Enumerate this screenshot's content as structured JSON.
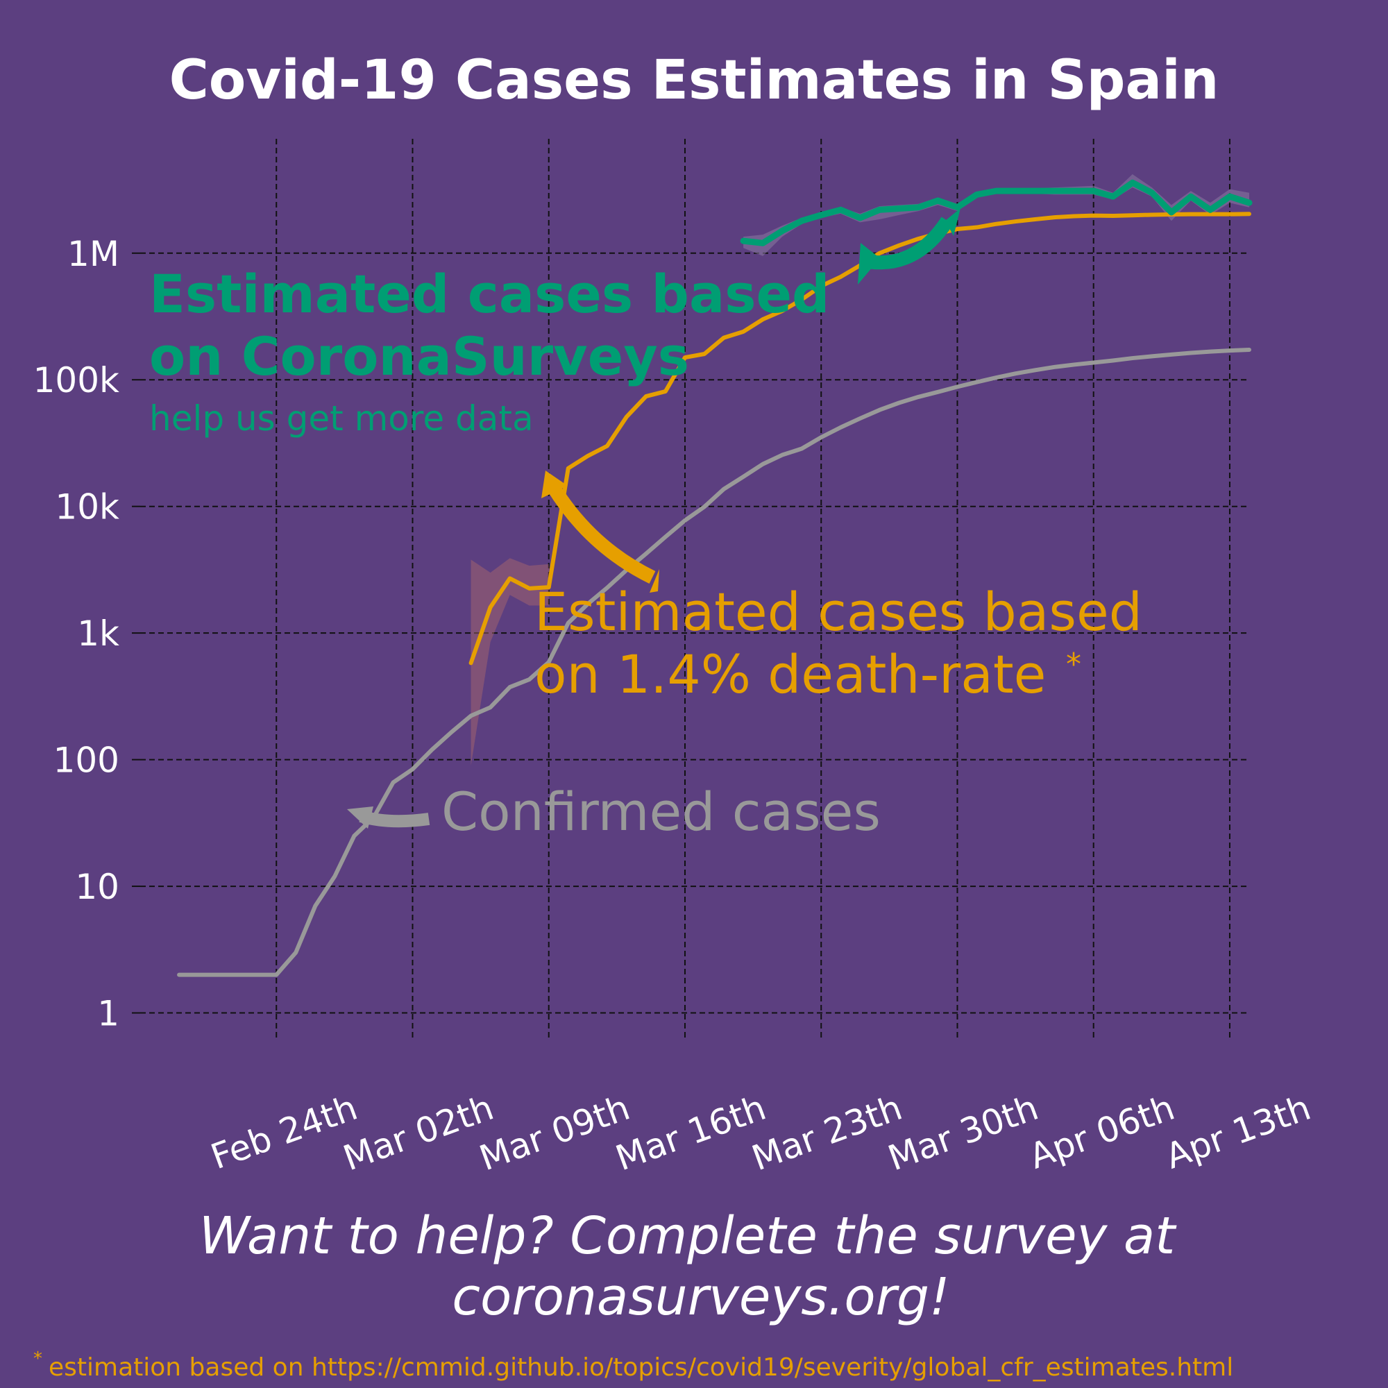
{
  "colors": {
    "background": "#5c3f80",
    "confirmed": "#999999",
    "death_rate": "#e69f00",
    "surveys": "#009e73",
    "grid": "#111111",
    "text": "#ffffff"
  },
  "chart_data": {
    "type": "line",
    "title": "Covid-19 Cases Estimates in Spain",
    "xlabel": "",
    "ylabel": "",
    "y_scale": "log",
    "ylim": [
      0.6,
      8000000
    ],
    "xlim": [
      "2020-02-17",
      "2020-04-14"
    ],
    "grid": true,
    "y_ticks": [
      {
        "value": 1,
        "label": "1"
      },
      {
        "value": 10,
        "label": "10"
      },
      {
        "value": 100,
        "label": "100"
      },
      {
        "value": 1000,
        "label": "1k"
      },
      {
        "value": 10000,
        "label": "10k"
      },
      {
        "value": 100000,
        "label": "100k"
      },
      {
        "value": 1000000,
        "label": "1M"
      }
    ],
    "x_ticks": [
      {
        "date": "2020-02-24",
        "label": "Feb 24th"
      },
      {
        "date": "2020-03-02",
        "label": "Mar 02th"
      },
      {
        "date": "2020-03-09",
        "label": "Mar 09th"
      },
      {
        "date": "2020-03-16",
        "label": "Mar 16th"
      },
      {
        "date": "2020-03-23",
        "label": "Mar 23th"
      },
      {
        "date": "2020-03-30",
        "label": "Mar 30th"
      },
      {
        "date": "2020-04-06",
        "label": "Apr 06th"
      },
      {
        "date": "2020-04-13",
        "label": "Apr 13th"
      }
    ],
    "series": [
      {
        "key": "confirmed",
        "points": [
          [
            "2020-02-19",
            2
          ],
          [
            "2020-02-20",
            2
          ],
          [
            "2020-02-21",
            2
          ],
          [
            "2020-02-22",
            2
          ],
          [
            "2020-02-23",
            2
          ],
          [
            "2020-02-24",
            2
          ],
          [
            "2020-02-25",
            3
          ],
          [
            "2020-02-26",
            7
          ],
          [
            "2020-02-27",
            12
          ],
          [
            "2020-02-28",
            25
          ],
          [
            "2020-02-29",
            35
          ],
          [
            "2020-03-01",
            66
          ],
          [
            "2020-03-02",
            84
          ],
          [
            "2020-03-03",
            120
          ],
          [
            "2020-03-04",
            165
          ],
          [
            "2020-03-05",
            222
          ],
          [
            "2020-03-06",
            259
          ],
          [
            "2020-03-07",
            374
          ],
          [
            "2020-03-08",
            430
          ],
          [
            "2020-03-09",
            589
          ],
          [
            "2020-03-10",
            1200
          ],
          [
            "2020-03-11",
            1695
          ],
          [
            "2020-03-12",
            2277
          ],
          [
            "2020-03-13",
            3146
          ],
          [
            "2020-03-14",
            4231
          ],
          [
            "2020-03-15",
            5753
          ],
          [
            "2020-03-16",
            7753
          ],
          [
            "2020-03-17",
            9942
          ],
          [
            "2020-03-18",
            13716
          ],
          [
            "2020-03-19",
            17147
          ],
          [
            "2020-03-20",
            21571
          ],
          [
            "2020-03-21",
            25496
          ],
          [
            "2020-03-22",
            28572
          ],
          [
            "2020-03-23",
            35136
          ],
          [
            "2020-03-24",
            42058
          ],
          [
            "2020-03-25",
            49515
          ],
          [
            "2020-03-26",
            57786
          ],
          [
            "2020-03-27",
            65719
          ],
          [
            "2020-03-28",
            73235
          ],
          [
            "2020-03-29",
            80110
          ],
          [
            "2020-03-30",
            87956
          ],
          [
            "2020-03-31",
            95923
          ],
          [
            "2020-04-01",
            104118
          ],
          [
            "2020-04-02",
            112065
          ],
          [
            "2020-04-03",
            119199
          ],
          [
            "2020-04-04",
            126168
          ],
          [
            "2020-04-05",
            131646
          ],
          [
            "2020-04-06",
            136675
          ],
          [
            "2020-04-07",
            141942
          ],
          [
            "2020-04-08",
            148220
          ],
          [
            "2020-04-09",
            153222
          ],
          [
            "2020-04-10",
            158273
          ],
          [
            "2020-04-11",
            163027
          ],
          [
            "2020-04-12",
            166831
          ],
          [
            "2020-04-13",
            170099
          ],
          [
            "2020-04-14",
            172541
          ]
        ]
      },
      {
        "key": "death_rate",
        "points": [
          [
            "2020-03-05",
            580
          ],
          [
            "2020-03-06",
            1600
          ],
          [
            "2020-03-07",
            2700
          ],
          [
            "2020-03-08",
            2250
          ],
          [
            "2020-03-09",
            2300
          ],
          [
            "2020-03-10",
            20000
          ],
          [
            "2020-03-11",
            25000
          ],
          [
            "2020-03-12",
            30000
          ],
          [
            "2020-03-13",
            51000
          ],
          [
            "2020-03-14",
            74000
          ],
          [
            "2020-03-15",
            81000
          ],
          [
            "2020-03-16",
            150000
          ],
          [
            "2020-03-17",
            160000
          ],
          [
            "2020-03-18",
            215000
          ],
          [
            "2020-03-19",
            240000
          ],
          [
            "2020-03-20",
            300000
          ],
          [
            "2020-03-21",
            350000
          ],
          [
            "2020-03-22",
            430000
          ],
          [
            "2020-03-23",
            550000
          ],
          [
            "2020-03-24",
            650000
          ],
          [
            "2020-03-25",
            800000
          ],
          [
            "2020-03-26",
            1000000
          ],
          [
            "2020-03-27",
            1150000
          ],
          [
            "2020-03-28",
            1300000
          ],
          [
            "2020-03-29",
            1430000
          ],
          [
            "2020-03-30",
            1550000
          ],
          [
            "2020-03-31",
            1600000
          ],
          [
            "2020-04-01",
            1700000
          ],
          [
            "2020-04-02",
            1780000
          ],
          [
            "2020-04-03",
            1850000
          ],
          [
            "2020-04-04",
            1920000
          ],
          [
            "2020-04-05",
            1960000
          ],
          [
            "2020-04-06",
            1980000
          ],
          [
            "2020-04-07",
            1970000
          ],
          [
            "2020-04-08",
            1990000
          ],
          [
            "2020-04-09",
            2010000
          ],
          [
            "2020-04-10",
            2020000
          ],
          [
            "2020-04-11",
            2030000
          ],
          [
            "2020-04-12",
            2030000
          ],
          [
            "2020-04-13",
            2030000
          ],
          [
            "2020-04-14",
            2040000
          ]
        ],
        "band": [
          [
            "2020-03-05",
            90,
            3800
          ],
          [
            "2020-03-06",
            850,
            3000
          ],
          [
            "2020-03-07",
            2000,
            3900
          ],
          [
            "2020-03-08",
            1650,
            3400
          ],
          [
            "2020-03-09",
            1650,
            3500
          ]
        ]
      },
      {
        "key": "surveys",
        "points": [
          [
            "2020-03-19",
            1250000
          ],
          [
            "2020-03-20",
            1200000
          ],
          [
            "2020-03-21",
            1500000
          ],
          [
            "2020-03-22",
            1800000
          ],
          [
            "2020-03-23",
            2000000
          ],
          [
            "2020-03-24",
            2200000
          ],
          [
            "2020-03-25",
            1900000
          ],
          [
            "2020-03-26",
            2200000
          ],
          [
            "2020-03-27",
            2250000
          ],
          [
            "2020-03-28",
            2300000
          ],
          [
            "2020-03-29",
            2600000
          ],
          [
            "2020-03-30",
            2300000
          ],
          [
            "2020-03-31",
            2900000
          ],
          [
            "2020-04-01",
            3100000
          ],
          [
            "2020-04-02",
            3100000
          ],
          [
            "2020-04-03",
            3100000
          ],
          [
            "2020-04-04",
            3100000
          ],
          [
            "2020-04-05",
            3100000
          ],
          [
            "2020-04-06",
            3100000
          ],
          [
            "2020-04-07",
            2800000
          ],
          [
            "2020-04-08",
            3600000
          ],
          [
            "2020-04-09",
            3000000
          ],
          [
            "2020-04-10",
            2100000
          ],
          [
            "2020-04-11",
            2800000
          ],
          [
            "2020-04-12",
            2200000
          ],
          [
            "2020-04-13",
            2800000
          ],
          [
            "2020-04-14",
            2500000
          ]
        ],
        "band": [
          [
            "2020-03-19",
            1100000,
            1350000
          ],
          [
            "2020-03-20",
            950000,
            1400000
          ],
          [
            "2020-03-21",
            1350000,
            1650000
          ],
          [
            "2020-03-22",
            1700000,
            1900000
          ],
          [
            "2020-03-23",
            1900000,
            2100000
          ],
          [
            "2020-03-24",
            2050000,
            2300000
          ],
          [
            "2020-03-25",
            1750000,
            2050000
          ],
          [
            "2020-03-26",
            1850000,
            2350000
          ],
          [
            "2020-03-27",
            2000000,
            2400000
          ],
          [
            "2020-03-28",
            2150000,
            2450000
          ],
          [
            "2020-03-29",
            2400000,
            2750000
          ],
          [
            "2020-03-30",
            2150000,
            2450000
          ],
          [
            "2020-03-31",
            2750000,
            3050000
          ],
          [
            "2020-04-01",
            2950000,
            3250000
          ],
          [
            "2020-04-02",
            2950000,
            3250000
          ],
          [
            "2020-04-03",
            2950000,
            3250000
          ],
          [
            "2020-04-04",
            2900000,
            3300000
          ],
          [
            "2020-04-05",
            2900000,
            3350000
          ],
          [
            "2020-04-06",
            2900000,
            3400000
          ],
          [
            "2020-04-07",
            2650000,
            3000000
          ],
          [
            "2020-04-08",
            3300000,
            4200000
          ],
          [
            "2020-04-09",
            2800000,
            3300000
          ],
          [
            "2020-04-10",
            1800000,
            2400000
          ],
          [
            "2020-04-11",
            2600000,
            3100000
          ],
          [
            "2020-04-12",
            2000000,
            2500000
          ],
          [
            "2020-04-13",
            2500000,
            3200000
          ],
          [
            "2020-04-14",
            2300000,
            3000000
          ]
        ]
      }
    ],
    "annotations": {
      "surveys_line1": "Estimated cases based",
      "surveys_line2": "on CoronaSurveys",
      "surveys_sub": "help us get more data",
      "death_line1": "Estimated cases based",
      "death_line2": "on 1.4% death-rate",
      "death_star": "*",
      "confirmed": "Confirmed cases"
    }
  },
  "call_to_action": {
    "line1": "Want to help? Complete the survey at",
    "line2": "coronasurveys.org!"
  },
  "footnote": {
    "star": "*",
    "text": "estimation based on https://cmmid.github.io/topics/covid19/severity/global_cfr_estimates.html"
  }
}
